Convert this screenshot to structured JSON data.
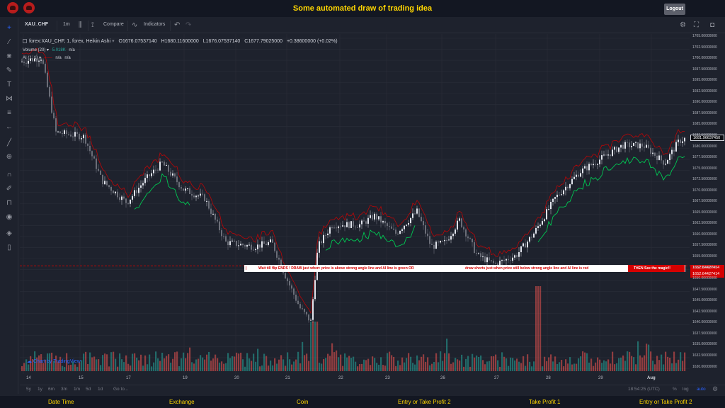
{
  "header": {
    "title": "Some automated draw of trading idea",
    "logout_label": "Logout"
  },
  "toolbar": {
    "symbol": "XAU_CHF",
    "interval": "1m",
    "compare_label": "Compare",
    "indicators_label": "Indicators"
  },
  "legend": {
    "main": "forex:XAU_CHF, 1, forex, Heikin Ashi",
    "open": "O1676.07537140",
    "high": "H1680.11600000",
    "low": "L1676.07537140",
    "close": "C1677.79025000",
    "change": "+0.38600000 (+0.02%)",
    "volume_label": "Volume (20)",
    "volume_value": "5.018K",
    "volume_na": "n/a",
    "ai_label": "AI (1, 1)",
    "ai_na1": "n/a",
    "ai_na2": "n/a"
  },
  "price_axis": {
    "labels": [
      "1705.00000000",
      "1702.50000000",
      "1700.00000000",
      "1697.50000000",
      "1695.00000000",
      "1692.50000000",
      "1690.00000000",
      "1687.50000000",
      "1685.00000000",
      "1682.50000000",
      "1680.00000000",
      "1677.50000000",
      "1675.00000000",
      "1672.50000000",
      "1670.00000000",
      "1667.50000000",
      "1665.00000000",
      "1662.50000000",
      "1660.00000000",
      "1657.50000000",
      "1655.00000000",
      "1652.50000000",
      "1650.00000000",
      "1647.50000000",
      "1645.00000000",
      "1642.50000000",
      "1640.00000000",
      "1637.50000000",
      "1635.00000000",
      "1632.50000000",
      "1630.00000000"
    ],
    "last_price_tag": "1681.96637450",
    "line_tag_1": "1652.64427414",
    "line_tag_2": "1652.64427414"
  },
  "time_axis": {
    "labels": [
      "14",
      "15",
      "17",
      "19",
      "20",
      "21",
      "22",
      "23",
      "26",
      "27",
      "28",
      "29",
      "Aug"
    ]
  },
  "banner": {
    "text1": "Wait till flip ENDS !    DRAW just when:  price is above strong angle line and AI line is green          OR",
    "text2": "draw shorts just when price still below strong angle line and AI line is red",
    "text3": "THEN See the magic!!"
  },
  "watermark": "Chart by TradingView",
  "bottom_bar": {
    "ranges": [
      "5y",
      "1y",
      "6m",
      "3m",
      "1m",
      "5d",
      "1d"
    ],
    "goto": "Go to...",
    "clock": "18:54:25 (UTC)",
    "pct": "%",
    "log": "log",
    "auto": "auto"
  },
  "footer": {
    "tabs": [
      "Date Time",
      "Exchange",
      "Coin",
      "Entry or Take Profit 2",
      "Take Profit 1",
      "Entry or Take Profit 2"
    ]
  },
  "colors": {
    "up": "#d1d4dc",
    "down": "#787b86",
    "ai_green": "#00c853",
    "ai_red": "#d50000",
    "accent": "#ffd600"
  },
  "chart_data": {
    "type": "candlestick",
    "symbol": "XAU_CHF",
    "ylim": [
      1630,
      1705
    ],
    "x": [
      "14",
      "15",
      "17",
      "19",
      "20",
      "21",
      "22",
      "23",
      "26",
      "27",
      "28",
      "29",
      "Aug"
    ],
    "close_approx": [
      1698,
      1681,
      1668,
      1671,
      1659,
      1640,
      1662,
      1663,
      1660,
      1651,
      1672,
      1678,
      1681
    ],
    "horizontal_line": 1652.64427414
  }
}
